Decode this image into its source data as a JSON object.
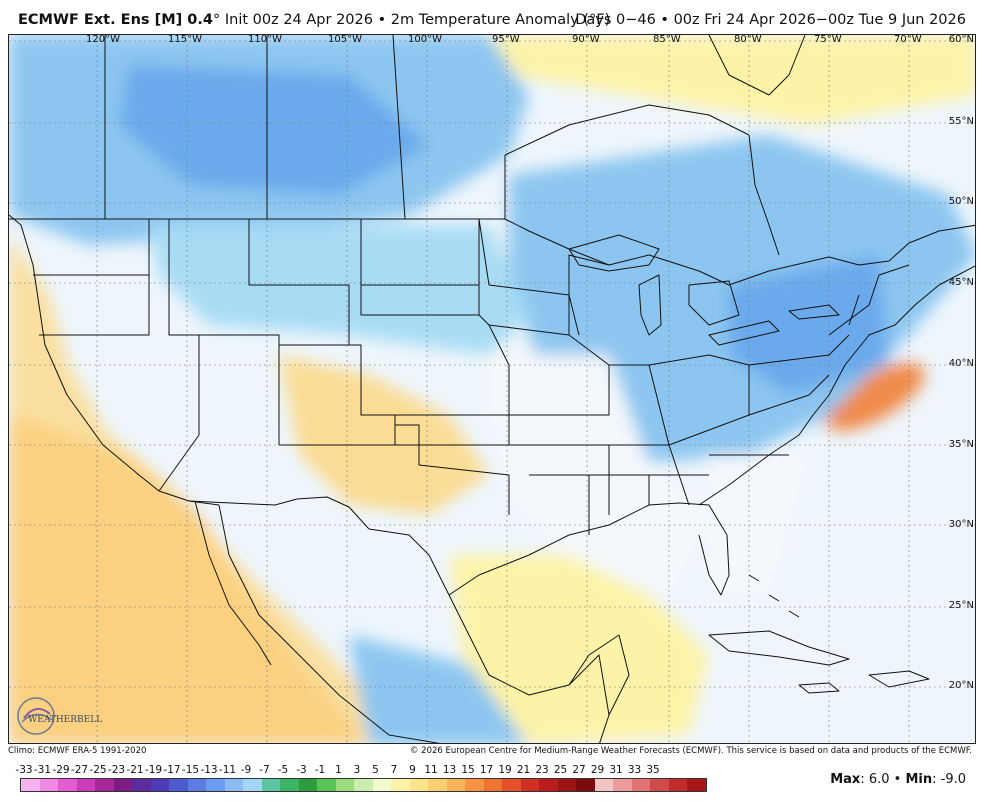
{
  "header": {
    "model_name": "ECMWF Ext. Ens [M] 0.4",
    "degree_mark": "°",
    "init_text": " Init 00z 24 Apr 2026 • 2m Temperature Anomaly (°F)",
    "range_text": "Days 0−46 • 00z Fri 24 Apr 2026−00z Tue 9 Jun 2026"
  },
  "map": {
    "lon_labels": [
      "120°W",
      "115°W",
      "110°W",
      "105°W",
      "100°W",
      "95°W",
      "90°W",
      "85°W",
      "80°W",
      "75°W",
      "70°W"
    ],
    "lat_labels": [
      "60°N",
      "55°N",
      "50°N",
      "45°N",
      "40°N",
      "35°N",
      "30°N",
      "25°N",
      "20°N"
    ],
    "colors": {
      "ocean_base": "#eef6fc",
      "cold_light": "#a8dcf4",
      "cold_mid": "#8cc6f0",
      "cold_deep": "#5c9ce8",
      "warm_light": "#fdf3a8",
      "warm_mid": "#fcd98a",
      "warm_deep": "#f6a85c",
      "warm_strong": "#f08a48",
      "neutral": "#f4f8fb"
    }
  },
  "footer": {
    "climo": "Climo: ECMWF ERA-5 1991-2020",
    "copyright": "© 2026 European Centre for Medium-Range Weather Forecasts (ECMWF). This service is based on data and products of the ECMWF."
  },
  "logo": {
    "text": "WEATHERBELL"
  },
  "scale": {
    "labels": [
      "-33",
      "-31",
      "-29",
      "-27",
      "-25",
      "-23",
      "-21",
      "-19",
      "-17",
      "-15",
      "-13",
      "-11",
      "-9",
      "-7",
      "-5",
      "-3",
      "-1",
      "1",
      "3",
      "5",
      "7",
      "9",
      "11",
      "13",
      "15",
      "17",
      "19",
      "21",
      "23",
      "25",
      "27",
      "29",
      "31",
      "33",
      "35"
    ],
    "colors": [
      "#f8b4f0",
      "#f088e4",
      "#e45cd4",
      "#cc3cb8",
      "#a8289c",
      "#7c1c84",
      "#5c2c9c",
      "#4c3cb4",
      "#4c5cd0",
      "#5c7ce4",
      "#6c9cf0",
      "#8cbcf4",
      "#a4d4f8",
      "#5cc4a0",
      "#3cb464",
      "#2c9c3c",
      "#58c458",
      "#9cdc7c",
      "#ccecb0",
      "#f4fad0",
      "#fdf3a8",
      "#fce48c",
      "#fcd070",
      "#fab458",
      "#f69444",
      "#f07434",
      "#e4502c",
      "#d03024",
      "#b81c1c",
      "#9c1414",
      "#7c0c0c",
      "#f4c4c4",
      "#ec9c9c",
      "#e07474",
      "#d04c4c",
      "#c02c2c",
      "#a81818"
    ],
    "max_label": "Max",
    "max_value": ": 6.0",
    "sep": " • ",
    "min_label": "Min",
    "min_value": ": -9.0"
  }
}
